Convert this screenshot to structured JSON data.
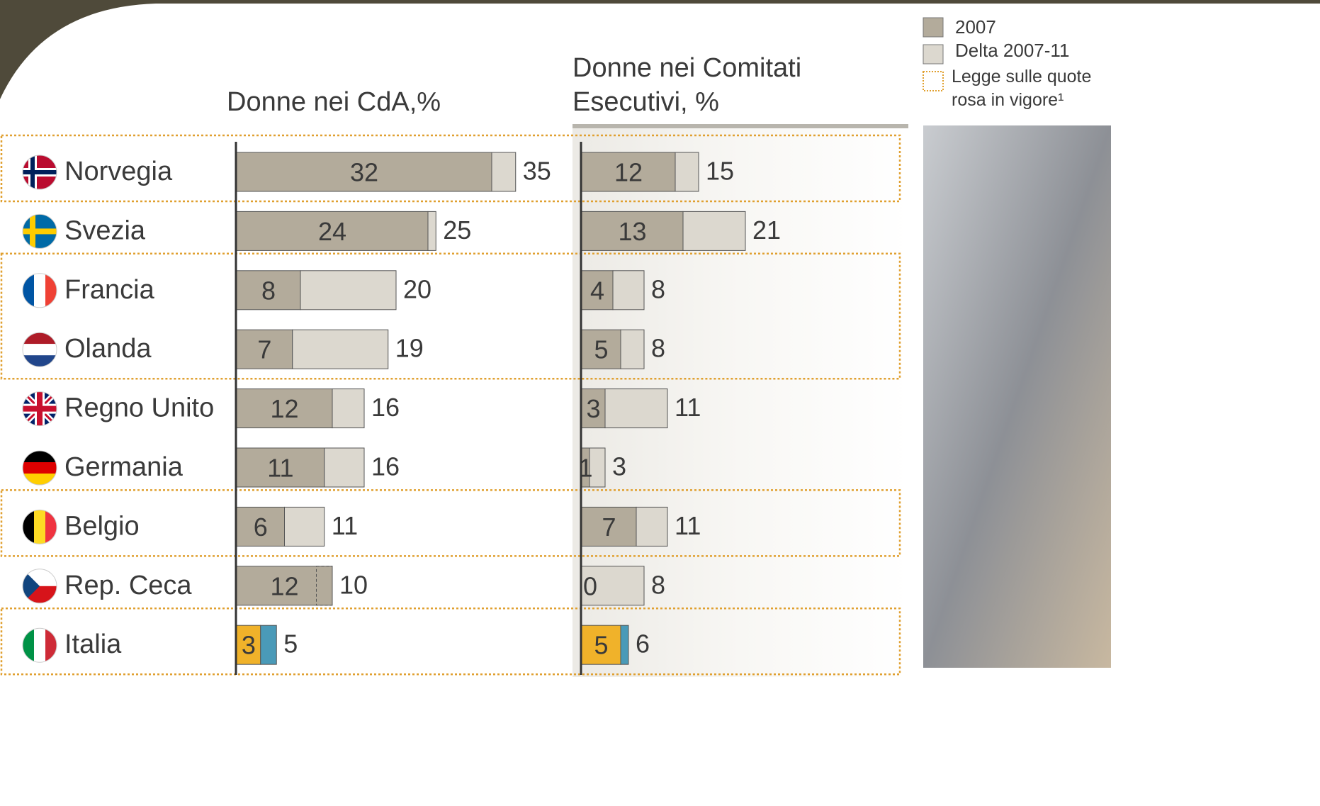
{
  "chart_data": [
    {
      "type": "bar",
      "orientation": "horizontal",
      "stacked": true,
      "title": "Donne nei CdA,%",
      "categories": [
        "Norvegia",
        "Svezia",
        "Francia",
        "Olanda",
        "Regno Unito",
        "Germania",
        "Belgio",
        "Rep. Ceca",
        "Italia"
      ],
      "series": [
        {
          "name": "2007",
          "color": "#b3ab9b",
          "values": [
            32,
            24,
            8,
            7,
            12,
            11,
            6,
            12,
            3
          ],
          "colors": [
            "#b3ab9b",
            "#b3ab9b",
            "#b3ab9b",
            "#b3ab9b",
            "#b3ab9b",
            "#b3ab9b",
            "#b3ab9b",
            "#b3ab9b",
            "#f0b22a"
          ]
        },
        {
          "name": "Delta 2007-11",
          "color": "#dcd8cf",
          "values": [
            3,
            1,
            12,
            12,
            4,
            5,
            5,
            -2,
            2
          ],
          "colors": [
            "#dcd8cf",
            "#dcd8cf",
            "#dcd8cf",
            "#dcd8cf",
            "#dcd8cf",
            "#dcd8cf",
            "#dcd8cf",
            "#dcd8cf",
            "#4a9ab8"
          ]
        }
      ],
      "totals": [
        35,
        25,
        20,
        19,
        16,
        16,
        11,
        10,
        5
      ],
      "xlim": [
        0,
        40
      ]
    },
    {
      "type": "bar",
      "orientation": "horizontal",
      "stacked": true,
      "title": "Donne nei Comitati Esecutivi, %",
      "series": [
        {
          "color": "#b3ab9b",
          "values": [
            12,
            13,
            4,
            5,
            3,
            1,
            7,
            0,
            5
          ],
          "colors": [
            "#b3ab9b",
            "#b3ab9b",
            "#b3ab9b",
            "#b3ab9b",
            "#b3ab9b",
            "#b3ab9b",
            "#b3ab9b",
            "#b3ab9b",
            "#f0b22a"
          ]
        },
        {
          "color": "#dcd8cf",
          "values": [
            3,
            8,
            4,
            3,
            8,
            2,
            4,
            8,
            1
          ],
          "colors": [
            "#dcd8cf",
            "#dcd8cf",
            "#dcd8cf",
            "#dcd8cf",
            "#dcd8cf",
            "#dcd8cf",
            "#dcd8cf",
            "#dcd8cf",
            "#4a9ab8"
          ]
        }
      ],
      "totals": [
        15,
        21,
        8,
        8,
        11,
        3,
        11,
        8,
        6
      ],
      "xlim": [
        0,
        40
      ]
    }
  ],
  "quota_law": [
    true,
    false,
    true,
    true,
    false,
    false,
    true,
    false,
    true
  ],
  "quota_law_label": "Legge sulle quote rosa in vigore¹",
  "quota_law_color": "#e0a030"
}
